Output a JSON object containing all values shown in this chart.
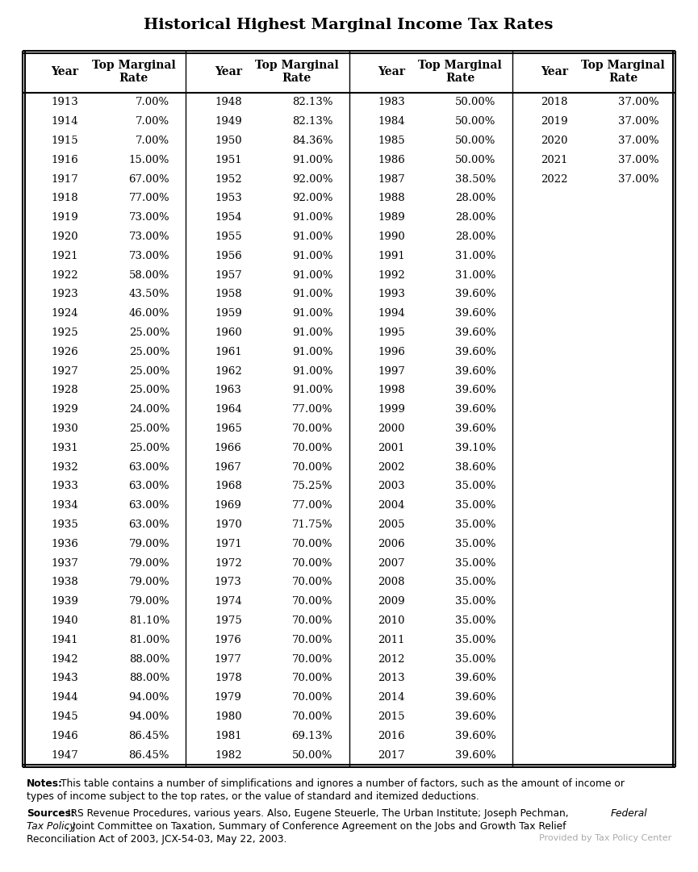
{
  "title": "Historical Highest Marginal Income Tax Rates",
  "col1_years": [
    1913,
    1914,
    1915,
    1916,
    1917,
    1918,
    1919,
    1920,
    1921,
    1922,
    1923,
    1924,
    1925,
    1926,
    1927,
    1928,
    1929,
    1930,
    1931,
    1932,
    1933,
    1934,
    1935,
    1936,
    1937,
    1938,
    1939,
    1940,
    1941,
    1942,
    1943,
    1944,
    1945,
    1946,
    1947
  ],
  "col1_rates": [
    "7.00%",
    "7.00%",
    "7.00%",
    "15.00%",
    "67.00%",
    "77.00%",
    "73.00%",
    "73.00%",
    "73.00%",
    "58.00%",
    "43.50%",
    "46.00%",
    "25.00%",
    "25.00%",
    "25.00%",
    "25.00%",
    "24.00%",
    "25.00%",
    "25.00%",
    "63.00%",
    "63.00%",
    "63.00%",
    "63.00%",
    "79.00%",
    "79.00%",
    "79.00%",
    "79.00%",
    "81.10%",
    "81.00%",
    "88.00%",
    "88.00%",
    "94.00%",
    "94.00%",
    "86.45%",
    "86.45%"
  ],
  "col2_years": [
    1948,
    1949,
    1950,
    1951,
    1952,
    1953,
    1954,
    1955,
    1956,
    1957,
    1958,
    1959,
    1960,
    1961,
    1962,
    1963,
    1964,
    1965,
    1966,
    1967,
    1968,
    1969,
    1970,
    1971,
    1972,
    1973,
    1974,
    1975,
    1976,
    1977,
    1978,
    1979,
    1980,
    1981,
    1982
  ],
  "col2_rates": [
    "82.13%",
    "82.13%",
    "84.36%",
    "91.00%",
    "92.00%",
    "92.00%",
    "91.00%",
    "91.00%",
    "91.00%",
    "91.00%",
    "91.00%",
    "91.00%",
    "91.00%",
    "91.00%",
    "91.00%",
    "91.00%",
    "77.00%",
    "70.00%",
    "70.00%",
    "70.00%",
    "75.25%",
    "77.00%",
    "71.75%",
    "70.00%",
    "70.00%",
    "70.00%",
    "70.00%",
    "70.00%",
    "70.00%",
    "70.00%",
    "70.00%",
    "70.00%",
    "70.00%",
    "69.13%",
    "50.00%"
  ],
  "col3_years": [
    1983,
    1984,
    1985,
    1986,
    1987,
    1988,
    1989,
    1990,
    1991,
    1992,
    1993,
    1994,
    1995,
    1996,
    1997,
    1998,
    1999,
    2000,
    2001,
    2002,
    2003,
    2004,
    2005,
    2006,
    2007,
    2008,
    2009,
    2010,
    2011,
    2012,
    2013,
    2014,
    2015,
    2016,
    2017
  ],
  "col3_rates": [
    "50.00%",
    "50.00%",
    "50.00%",
    "50.00%",
    "38.50%",
    "28.00%",
    "28.00%",
    "28.00%",
    "31.00%",
    "31.00%",
    "39.60%",
    "39.60%",
    "39.60%",
    "39.60%",
    "39.60%",
    "39.60%",
    "39.60%",
    "39.60%",
    "39.10%",
    "38.60%",
    "35.00%",
    "35.00%",
    "35.00%",
    "35.00%",
    "35.00%",
    "35.00%",
    "35.00%",
    "35.00%",
    "35.00%",
    "35.00%",
    "39.60%",
    "39.60%",
    "39.60%",
    "39.60%",
    "39.60%"
  ],
  "col4_years": [
    2018,
    2019,
    2020,
    2021,
    2022
  ],
  "col4_rates": [
    "37.00%",
    "37.00%",
    "37.00%",
    "37.00%",
    "37.00%"
  ],
  "header_year": "Year",
  "header_rate": "Top Marginal\nRate",
  "notes_bold": "Notes:",
  "notes_text": " This table contains a number of simplifications and ignores a number of factors, such as the amount of income or types of income subject to the top rates, or the value of standard and itemized deductions.",
  "sources_bold": "Sources:",
  "sources_text_1": " IRS Revenue Procedures, various years. Also, Eugene Steuerle, The Urban Institute; Joseph Pechman, ",
  "sources_italic": "Federal Tax Policy",
  "sources_text_2": "; Joint Committee on Taxation, Summary of Conference Agreement on the Jobs and Growth Tax Relief Reconciliation Act of 2003, JCX-54-03, May 22, 2003.",
  "watermark": "Provided by Tax Policy Center",
  "bg_color": "#ffffff",
  "text_color": "#000000"
}
